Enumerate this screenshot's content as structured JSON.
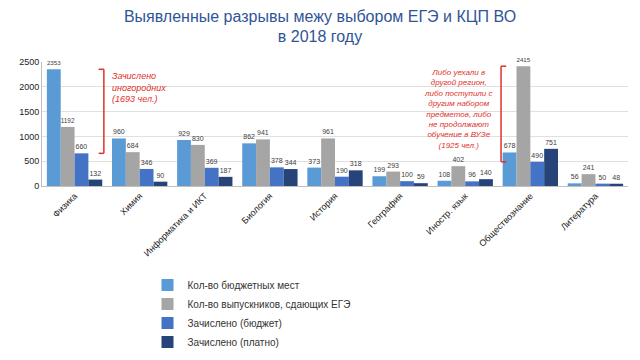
{
  "chart_data": {
    "type": "bar",
    "title": "Выявленные разрывы межу выбором ЕГЭ и КЦП ВО\nв 2018 году",
    "categories": [
      "Физика",
      "Химия",
      "Информатика и ИКТ",
      "Биология",
      "История",
      "География",
      "Иностр. язык",
      "Обществознание",
      "Литература"
    ],
    "series": [
      {
        "name": "Кол-во бюджетных мест",
        "color": "#5b9bd5",
        "values": [
          2353,
          960,
          929,
          862,
          373,
          199,
          108,
          678,
          56
        ]
      },
      {
        "name": "Кол-во выпускников, сдающих ЕГЭ",
        "color": "#a5a5a5",
        "values": [
          1192,
          684,
          830,
          941,
          961,
          293,
          402,
          2415,
          241
        ]
      },
      {
        "name": "Зачислено (бюджет)",
        "color": "#4472c4",
        "values": [
          660,
          346,
          369,
          378,
          190,
          100,
          96,
          490,
          50
        ]
      },
      {
        "name": "Зачислено (платно)",
        "color": "#264478",
        "values": [
          132,
          90,
          187,
          344,
          318,
          59,
          140,
          751,
          48
        ]
      }
    ],
    "ylim": [
      0,
      2500
    ],
    "yticks": [
      0,
      500,
      1000,
      1500,
      2000,
      2500
    ],
    "grid": true,
    "legend": "bottom",
    "data_labels": true,
    "annotations": [
      {
        "text": "Зачислено\nиногородних\n(1693 чел.)",
        "color": "#e0302a"
      },
      {
        "text": "Либо уехали в\nдругой регион,\nлибо поступили с\nдругим набором\nпредметов, либо\nне продолжают\nобучение в ВУЗе\n(1925 чел.)",
        "color": "#e0302a"
      }
    ]
  }
}
